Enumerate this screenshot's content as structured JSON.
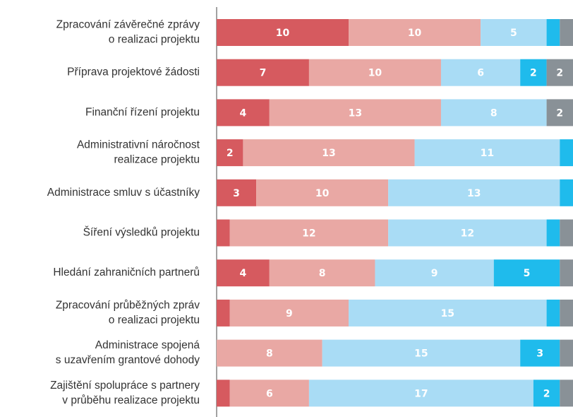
{
  "chart_data": {
    "type": "stacked_barh",
    "categories": [
      [
        "Zpracování závěrečné zprávy",
        "o realizaci projektu"
      ],
      [
        "Příprava projektové žádosti"
      ],
      [
        "Finanční řízení projektu"
      ],
      [
        "Administrativní náročnost",
        "realizace projektu"
      ],
      [
        "Administrace smluv s účastníky"
      ],
      [
        "Šíření výsledků projektu"
      ],
      [
        "Hledání zahraničních partnerů"
      ],
      [
        "Zpracování průběžných zpráv",
        "o realizaci projektu"
      ],
      [
        "Administrace spojená",
        "s uzavřením grantové dohody"
      ],
      [
        "Zajištění spolupráce s partnery",
        "v průběhu realizace projektu"
      ]
    ],
    "series": [
      {
        "color": "#d65a5f",
        "values": [
          10,
          7,
          4,
          2,
          3,
          1,
          4,
          1,
          0,
          1
        ],
        "value_labels": [
          "10",
          "7",
          "4",
          "2",
          "3",
          null,
          "4",
          null,
          null,
          null
        ]
      },
      {
        "color": "#e9a8a4",
        "values": [
          10,
          10,
          13,
          13,
          10,
          12,
          8,
          9,
          8,
          6
        ],
        "value_labels": [
          "10",
          "10",
          "13",
          "13",
          "10",
          "12",
          "8",
          "9",
          "8",
          "6"
        ]
      },
      {
        "color": "#a9dcf5",
        "values": [
          5,
          6,
          8,
          11,
          13,
          12,
          9,
          15,
          15,
          17
        ],
        "value_labels": [
          "5",
          "6",
          "8",
          "11",
          "13",
          "12",
          "9",
          "15",
          "15",
          "17"
        ]
      },
      {
        "color": "#1fbbec",
        "values": [
          1,
          2,
          0,
          1,
          1,
          1,
          5,
          1,
          3,
          2
        ],
        "value_labels": [
          null,
          "2",
          null,
          null,
          null,
          null,
          "5",
          null,
          "3",
          "2"
        ]
      },
      {
        "color": "#899197",
        "values": [
          1,
          2,
          2,
          0,
          0,
          1,
          1,
          1,
          1,
          1
        ],
        "value_labels": [
          null,
          "2",
          "2",
          null,
          null,
          null,
          null,
          null,
          null,
          null
        ]
      }
    ],
    "xlim": [
      0,
      27
    ]
  }
}
